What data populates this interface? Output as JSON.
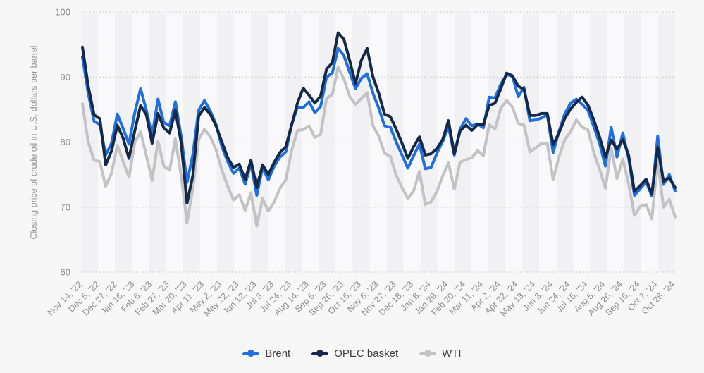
{
  "chart_data": {
    "type": "line",
    "title": "",
    "ylabel": "Closing price of crude oil in U.S. dollars per barrel",
    "xlabel": "",
    "y_axis": {
      "min": 60,
      "max": 100,
      "ticks": [
        100,
        90,
        80,
        70,
        60
      ]
    },
    "grid": "horizontal-dotted",
    "background_stripes": [
      "#f1f1f4",
      "#f9f9fb"
    ],
    "gridline_color": "#c9c9cc",
    "axis_text_color": "#8e8e93",
    "legend_position": "bottom-center",
    "points_count": 103,
    "x_tick_every": 3,
    "x_tick_labels": [
      "Nov 14, '22",
      "Dec 5, '22",
      "Dec 27, '22",
      "Jan 16, '23",
      "Feb 6, '23",
      "Feb 27, '23",
      "Mar 20, '23",
      "Apr 11, '23",
      "May 2, '23",
      "May 22, '23",
      "Jun 12, '23",
      "Jul 3, '23",
      "Jul 24, '23",
      "Aug 14, '23",
      "Sep 5, '23",
      "Sep 25, '23",
      "Oct 16, '23",
      "Nov 6, '23",
      "Nov 27, '23",
      "Dec 18, '23",
      "Jan 8, '24",
      "Jan 29, '24",
      "Feb 20, '24",
      "Mar 11, '24",
      "Apr 2, '24",
      "Apr 22, '24",
      "May 13, '24",
      "Jun 3, '24",
      "Jun 24, '24",
      "Jul 15, '24",
      "Aug 5, '24",
      "Aug 26, '24",
      "Sep 16, '24",
      "Oct 7, '24",
      "Oct 28, '24"
    ],
    "draw_order": [
      "WTI",
      "Brent",
      "OPEC basket"
    ],
    "series": [
      {
        "name": "Brent",
        "color": "#1f6fe0",
        "values": [
          93.1,
          87.5,
          83.2,
          82.7,
          78.0,
          79.8,
          84.3,
          82.1,
          79.7,
          84.5,
          88.2,
          84.9,
          81.0,
          86.6,
          83.0,
          82.5,
          86.2,
          80.8,
          73.8,
          78.1,
          84.9,
          86.4,
          84.8,
          82.7,
          79.3,
          77.0,
          75.2,
          76.0,
          73.5,
          76.7,
          71.8,
          76.1,
          74.2,
          76.3,
          77.7,
          78.5,
          82.7,
          85.4,
          85.3,
          86.2,
          84.5,
          85.5,
          90.0,
          90.6,
          94.4,
          93.3,
          90.7,
          88.2,
          89.8,
          90.5,
          87.5,
          85.2,
          82.5,
          82.3,
          80.0,
          78.0,
          76.0,
          77.9,
          79.7,
          75.9,
          76.1,
          78.3,
          80.1,
          82.4,
          78.0,
          82.0,
          83.6,
          82.5,
          82.8,
          82.2,
          86.9,
          86.8,
          88.9,
          90.4,
          90.1,
          87.0,
          88.4,
          83.3,
          83.4,
          83.7,
          84.2,
          78.4,
          81.6,
          84.3,
          86.0,
          86.6,
          85.8,
          84.9,
          82.4,
          79.8,
          76.3,
          82.3,
          77.7,
          81.4,
          77.5,
          71.8,
          72.8,
          73.9,
          71.7,
          80.9,
          73.5,
          75.0,
          72.5
        ]
      },
      {
        "name": "OPEC basket",
        "color": "#142947",
        "values": [
          94.6,
          88.6,
          84.2,
          83.6,
          76.5,
          78.6,
          82.6,
          80.6,
          77.5,
          81.7,
          85.6,
          84.2,
          79.8,
          84.4,
          82.2,
          81.4,
          84.9,
          79.8,
          70.6,
          74.9,
          84.0,
          85.3,
          84.3,
          82.5,
          80.0,
          77.6,
          76.1,
          76.6,
          74.2,
          77.2,
          73.0,
          76.5,
          75.0,
          76.9,
          78.4,
          79.3,
          82.6,
          86.0,
          88.3,
          87.2,
          86.0,
          87.1,
          91.2,
          92.2,
          96.8,
          95.8,
          92.5,
          89.0,
          92.6,
          94.4,
          90.0,
          87.5,
          84.3,
          83.9,
          82.0,
          79.8,
          77.5,
          79.3,
          80.8,
          78.0,
          78.2,
          79.0,
          80.4,
          83.3,
          78.2,
          81.7,
          82.6,
          81.8,
          82.7,
          82.7,
          85.6,
          86.0,
          88.2,
          90.6,
          90.2,
          88.6,
          88.1,
          84.1,
          84.1,
          84.4,
          84.4,
          79.6,
          81.4,
          83.6,
          85.1,
          86.1,
          86.9,
          85.7,
          83.4,
          80.8,
          77.7,
          80.3,
          78.9,
          80.4,
          78.0,
          72.4,
          73.3,
          74.3,
          72.0,
          79.2,
          74.0,
          74.5,
          73.0
        ]
      },
      {
        "name": "WTI",
        "color": "#c3c3c5",
        "values": [
          85.9,
          80.0,
          77.2,
          77.0,
          73.2,
          75.2,
          79.5,
          77.0,
          74.6,
          79.9,
          81.6,
          77.9,
          74.1,
          80.1,
          76.3,
          75.7,
          80.5,
          74.8,
          67.6,
          72.8,
          80.4,
          82.0,
          80.8,
          78.8,
          75.7,
          73.2,
          71.1,
          71.9,
          69.5,
          72.2,
          67.1,
          71.3,
          69.4,
          70.8,
          72.9,
          74.2,
          78.7,
          81.8,
          81.9,
          82.5,
          80.7,
          81.2,
          86.7,
          87.3,
          91.5,
          89.7,
          87.0,
          85.8,
          86.7,
          87.6,
          82.5,
          80.9,
          78.3,
          77.8,
          74.9,
          73.0,
          71.3,
          72.5,
          75.5,
          70.4,
          70.8,
          72.4,
          74.8,
          76.8,
          72.8,
          76.9,
          77.3,
          77.6,
          78.7,
          77.9,
          82.7,
          82.0,
          85.2,
          86.4,
          85.4,
          82.9,
          82.6,
          78.5,
          79.1,
          79.8,
          79.8,
          74.2,
          77.7,
          80.3,
          81.6,
          83.4,
          82.3,
          81.9,
          78.4,
          75.8,
          72.9,
          79.1,
          74.4,
          77.4,
          73.6,
          68.7,
          70.1,
          70.4,
          68.2,
          77.1,
          70.0,
          71.2,
          68.5
        ]
      }
    ],
    "legend": [
      "Brent",
      "OPEC basket",
      "WTI"
    ]
  }
}
